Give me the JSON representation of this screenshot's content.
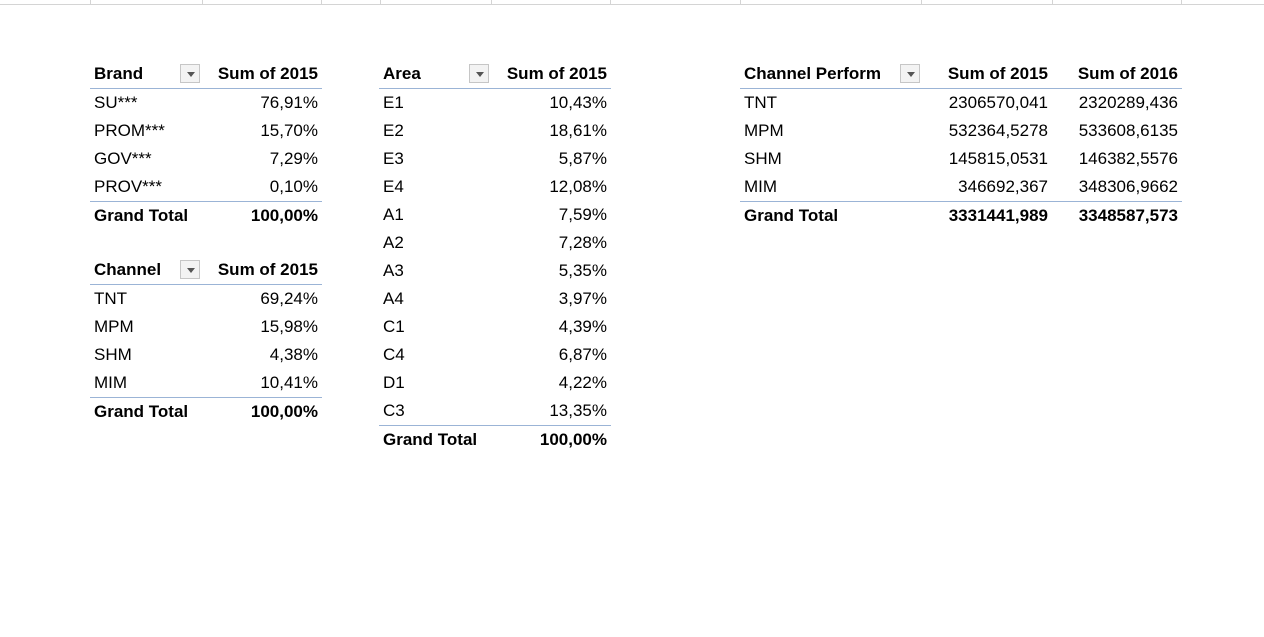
{
  "brand_table": {
    "header": "Brand",
    "value_header": "Sum of 2015",
    "rows": [
      {
        "label": "SU***",
        "value": "76,91%"
      },
      {
        "label": "PROM***",
        "value": "15,70%"
      },
      {
        "label": "GOV***",
        "value": "7,29%"
      },
      {
        "label": "PROV***",
        "value": "0,10%"
      }
    ],
    "total_label": "Grand Total",
    "total_value": "100,00%"
  },
  "channel_table": {
    "header": "Channel",
    "value_header": "Sum of 2015",
    "rows": [
      {
        "label": "TNT",
        "value": "69,24%"
      },
      {
        "label": "MPM",
        "value": "15,98%"
      },
      {
        "label": "SHM",
        "value": "4,38%"
      },
      {
        "label": "MIM",
        "value": "10,41%"
      }
    ],
    "total_label": "Grand Total",
    "total_value": "100,00%"
  },
  "area_table": {
    "header": "Area",
    "value_header": "Sum of 2015",
    "rows": [
      {
        "label": "E1",
        "value": "10,43%"
      },
      {
        "label": "E2",
        "value": "18,61%"
      },
      {
        "label": "E3",
        "value": "5,87%"
      },
      {
        "label": "E4",
        "value": "12,08%"
      },
      {
        "label": "A1",
        "value": "7,59%"
      },
      {
        "label": "A2",
        "value": "7,28%"
      },
      {
        "label": "A3",
        "value": "5,35%"
      },
      {
        "label": "A4",
        "value": "3,97%"
      },
      {
        "label": "C1",
        "value": "4,39%"
      },
      {
        "label": "C4",
        "value": "6,87%"
      },
      {
        "label": "D1",
        "value": "4,22%"
      },
      {
        "label": "C3",
        "value": "13,35%"
      }
    ],
    "total_label": "Grand Total",
    "total_value": "100,00%"
  },
  "perform_table": {
    "header": "Channel Perform",
    "value_header_1": "Sum of 2015",
    "value_header_2": "Sum of 2016",
    "rows": [
      {
        "label": "TNT",
        "v2015": "2306570,041",
        "v2016": "2320289,436"
      },
      {
        "label": "MPM",
        "v2015": "532364,5278",
        "v2016": "533608,6135"
      },
      {
        "label": "SHM",
        "v2015": "145815,0531",
        "v2016": "146382,5576"
      },
      {
        "label": "MIM",
        "v2015": "346692,367",
        "v2016": "348306,9662"
      }
    ],
    "total_label": "Grand Total",
    "total_2015": "3331441,989",
    "total_2016": "3348587,573"
  },
  "colors": {
    "header_border": "#9bb4d6",
    "dropdown_bg": "#f3f3f3"
  }
}
